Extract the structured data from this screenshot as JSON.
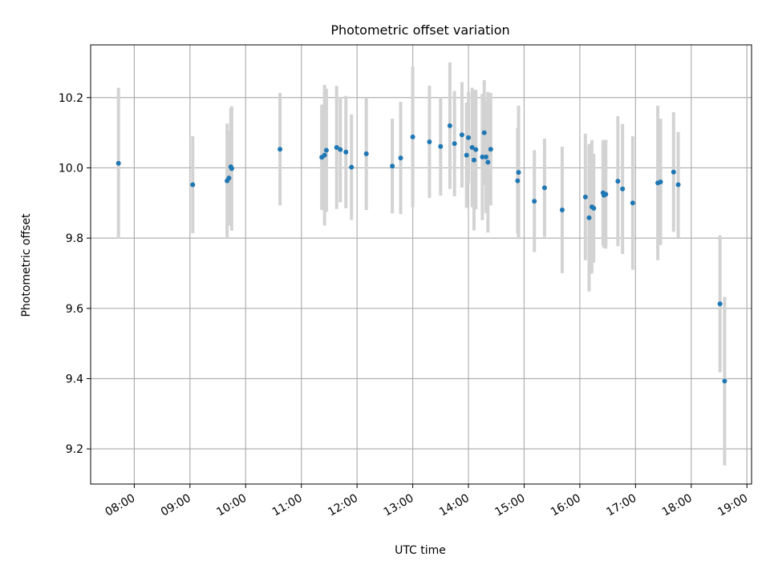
{
  "colors": {
    "point": "#1f77b4",
    "errorbar": "#d3d3d3",
    "grid": "#b0b0b0",
    "axes": "#000000"
  },
  "chart_data": {
    "type": "scatter",
    "title": "Photometric offset variation",
    "xlabel": "UTC time",
    "ylabel": "Photometric offset",
    "grid": true,
    "legend": "none",
    "xlim": [
      "07:13",
      "19:05"
    ],
    "ylim": [
      9.1,
      10.35
    ],
    "x_ticks": [
      "08:00",
      "09:00",
      "10:00",
      "11:00",
      "12:00",
      "13:00",
      "14:00",
      "15:00",
      "16:00",
      "17:00",
      "18:00",
      "19:00"
    ],
    "y_ticks": [
      "9.2",
      "9.4",
      "9.6",
      "9.8",
      "10.0",
      "10.2"
    ],
    "series": [
      {
        "x": [
          "07:43",
          "09:03",
          "09:40",
          "09:42",
          "09:44",
          "09:45",
          "10:37",
          "11:22",
          "11:25",
          "11:27",
          "11:38",
          "11:42",
          "11:48",
          "11:54",
          "12:10",
          "12:38",
          "12:47",
          "13:00",
          "13:18",
          "13:30",
          "13:40",
          "13:45",
          "13:53",
          "13:58",
          "14:00",
          "14:04",
          "14:06",
          "14:08",
          "14:15",
          "14:17",
          "14:19",
          "14:21",
          "14:24",
          "14:53",
          "14:54",
          "15:11",
          "15:22",
          "15:41",
          "16:06",
          "16:10",
          "16:13",
          "16:15",
          "16:25",
          "16:26",
          "16:28",
          "16:41",
          "16:46",
          "16:57",
          "17:24",
          "17:27",
          "17:41",
          "17:46",
          "18:31",
          "18:36"
        ],
        "y": [
          10.013,
          9.952,
          9.963,
          9.971,
          10.003,
          9.998,
          10.053,
          10.03,
          10.036,
          10.05,
          10.058,
          10.052,
          10.045,
          10.002,
          10.04,
          10.005,
          10.028,
          10.088,
          10.074,
          10.061,
          10.12,
          10.069,
          10.094,
          10.036,
          10.086,
          10.058,
          10.022,
          10.052,
          10.031,
          10.1,
          10.031,
          10.016,
          10.053,
          9.963,
          9.987,
          9.905,
          9.943,
          9.88,
          9.917,
          9.858,
          9.889,
          9.885,
          9.929,
          9.922,
          9.925,
          9.962,
          9.94,
          9.9,
          9.957,
          9.96,
          9.988,
          9.952,
          9.613,
          9.393
        ],
        "yerr": [
          0.215,
          0.138,
          0.163,
          0.135,
          0.167,
          0.177,
          0.16,
          0.15,
          0.2,
          0.175,
          0.175,
          0.15,
          0.16,
          0.15,
          0.16,
          0.135,
          0.16,
          0.2,
          0.16,
          0.14,
          0.18,
          0.15,
          0.15,
          0.15,
          0.13,
          0.17,
          0.2,
          0.17,
          0.18,
          0.15,
          0.16,
          0.2,
          0.16,
          0.15,
          0.19,
          0.145,
          0.14,
          0.18,
          0.18,
          0.21,
          0.19,
          0.155,
          0.15,
          0.15,
          0.155,
          0.185,
          0.185,
          0.19,
          0.22,
          0.18,
          0.17,
          0.15,
          0.195,
          0.24
        ]
      }
    ]
  }
}
